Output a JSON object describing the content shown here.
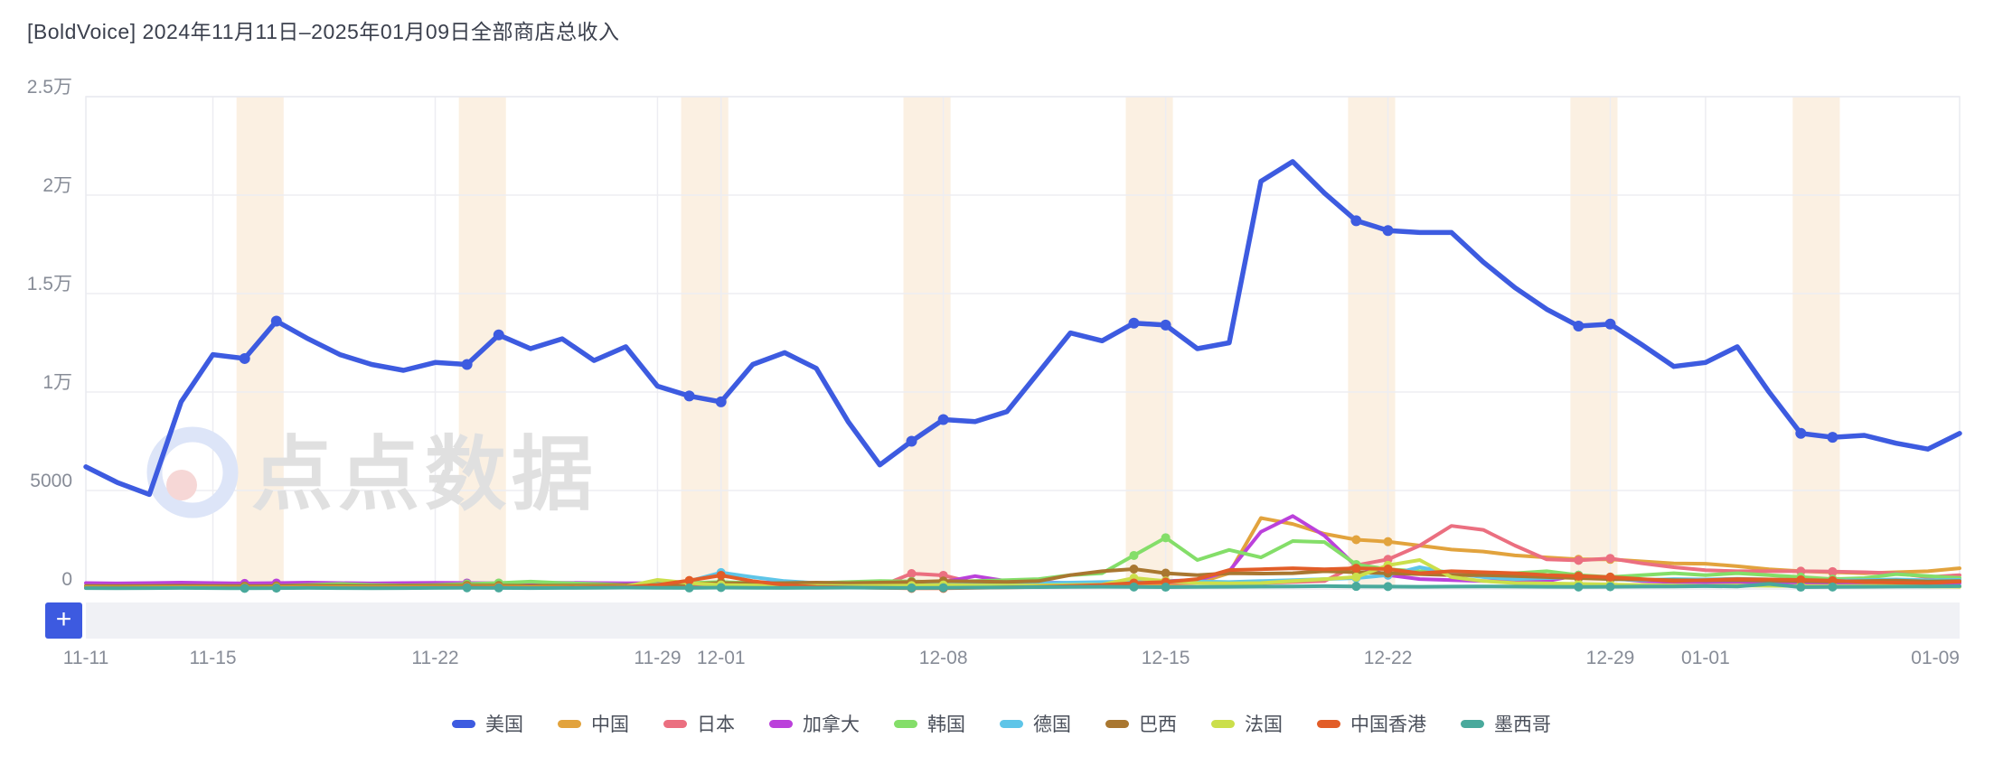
{
  "header": {
    "title": "[BoldVoice] 2024年11月11日–2025年01月09日全部商店总收入"
  },
  "watermark": {
    "text": "点点数据"
  },
  "controls": {
    "add_button_label": "+"
  },
  "colors": {
    "grid": "#ededf2",
    "plot_border": "#e9eaef",
    "weekend_band": "#fbf0e2",
    "axis_text": "#878c97",
    "brush_strip": "#f0f1f5",
    "add_button_bg": "#3d5ae0",
    "watermark_text": "#e0e0e0",
    "watermark_ring": "#dde5f8",
    "watermark_dot": "#f6d7d6"
  },
  "chart_data": {
    "type": "line",
    "title": "[BoldVoice] 2024年11月11日–2025年01月09日全部商店总收入",
    "xlabel": "",
    "ylabel": "",
    "ylim": [
      0,
      25000
    ],
    "grid": true,
    "legend_position": "bottom",
    "y_ticks": [
      {
        "label": "0",
        "value": 0
      },
      {
        "label": "5000",
        "value": 5000
      },
      {
        "label": "1万",
        "value": 10000
      },
      {
        "label": "1.5万",
        "value": 15000
      },
      {
        "label": "2万",
        "value": 20000
      },
      {
        "label": "2.5万",
        "value": 25000
      }
    ],
    "x": [
      "11-11",
      "11-12",
      "11-13",
      "11-14",
      "11-15",
      "11-16",
      "11-17",
      "11-18",
      "11-19",
      "11-20",
      "11-21",
      "11-22",
      "11-23",
      "11-24",
      "11-25",
      "11-26",
      "11-27",
      "11-28",
      "11-29",
      "11-30",
      "12-01",
      "12-02",
      "12-03",
      "12-04",
      "12-05",
      "12-06",
      "12-07",
      "12-08",
      "12-09",
      "12-10",
      "12-11",
      "12-12",
      "12-13",
      "12-14",
      "12-15",
      "12-16",
      "12-17",
      "12-18",
      "12-19",
      "12-20",
      "12-21",
      "12-22",
      "12-23",
      "12-24",
      "12-25",
      "12-26",
      "12-27",
      "12-28",
      "12-29",
      "12-30",
      "12-31",
      "01-01",
      "01-02",
      "01-03",
      "01-04",
      "01-05",
      "01-06",
      "01-07",
      "01-08",
      "01-09"
    ],
    "x_tick_labels": [
      {
        "label": "11-11",
        "index": 0
      },
      {
        "label": "11-15",
        "index": 4
      },
      {
        "label": "11-22",
        "index": 11
      },
      {
        "label": "11-29",
        "index": 18
      },
      {
        "label": "12-01",
        "index": 20
      },
      {
        "label": "12-08",
        "index": 27
      },
      {
        "label": "12-15",
        "index": 34
      },
      {
        "label": "12-22",
        "index": 41
      },
      {
        "label": "12-29",
        "index": 48
      },
      {
        "label": "01-01",
        "index": 51
      },
      {
        "label": "01-09",
        "index": 59
      }
    ],
    "weekend_band_start_indices": [
      5,
      12,
      19,
      26,
      33,
      40,
      47,
      54
    ],
    "series": [
      {
        "name": "美国",
        "slug": "us",
        "color": "#3d5be0",
        "values": [
          6200,
          5400,
          4800,
          9500,
          11900,
          11700,
          13600,
          12700,
          11900,
          11400,
          11100,
          11500,
          11400,
          12900,
          12200,
          12700,
          11600,
          12300,
          10300,
          9800,
          9500,
          11400,
          12000,
          11200,
          8500,
          6300,
          7500,
          8600,
          8500,
          9000,
          11000,
          13000,
          12600,
          13500,
          13400,
          12200,
          12500,
          20700,
          21700,
          20100,
          18700,
          18200,
          18100,
          18100,
          16600,
          15300,
          14200,
          13350,
          13450,
          12400,
          11300,
          11500,
          12300,
          10000,
          7900,
          7700,
          7800,
          7400,
          7100,
          7900
        ]
      },
      {
        "name": "中国",
        "slug": "china",
        "color": "#e2a33d",
        "values": [
          120,
          100,
          90,
          110,
          100,
          90,
          100,
          110,
          100,
          90,
          100,
          110,
          120,
          100,
          110,
          120,
          100,
          110,
          100,
          120,
          150,
          140,
          160,
          150,
          140,
          150,
          160,
          180,
          170,
          160,
          180,
          200,
          220,
          250,
          260,
          300,
          800,
          3600,
          3300,
          2800,
          2500,
          2400,
          2200,
          2000,
          1900,
          1700,
          1600,
          1500,
          1500,
          1400,
          1300,
          1280,
          1150,
          1000,
          900,
          850,
          800,
          850,
          900,
          1050
        ]
      },
      {
        "name": "日本",
        "slug": "japan",
        "color": "#eb6f80",
        "values": [
          80,
          70,
          60,
          80,
          70,
          60,
          70,
          80,
          70,
          60,
          70,
          80,
          90,
          80,
          70,
          80,
          90,
          80,
          90,
          100,
          120,
          110,
          100,
          110,
          120,
          130,
          780,
          690,
          300,
          200,
          180,
          200,
          250,
          300,
          350,
          300,
          280,
          300,
          350,
          400,
          1200,
          1500,
          2200,
          3200,
          3000,
          2200,
          1500,
          1450,
          1550,
          1300,
          1100,
          950,
          900,
          900,
          900,
          880,
          850,
          800,
          600,
          700
        ]
      },
      {
        "name": "加拿大",
        "slug": "canada",
        "color": "#bb41db",
        "values": [
          300,
          280,
          300,
          320,
          300,
          280,
          300,
          320,
          300,
          280,
          300,
          310,
          300,
          290,
          300,
          310,
          300,
          290,
          300,
          310,
          300,
          320,
          340,
          300,
          280,
          300,
          320,
          350,
          650,
          400,
          350,
          300,
          320,
          350,
          400,
          450,
          900,
          2900,
          3700,
          2700,
          1150,
          700,
          500,
          450,
          400,
          380,
          400,
          700,
          550,
          400,
          350,
          300,
          320,
          300,
          280,
          300,
          320,
          300,
          280,
          300
        ]
      },
      {
        "name": "韩国",
        "slug": "south-korea",
        "color": "#84de69",
        "values": [
          150,
          140,
          150,
          160,
          150,
          140,
          150,
          200,
          250,
          200,
          180,
          200,
          250,
          300,
          370,
          300,
          250,
          200,
          250,
          300,
          350,
          300,
          280,
          300,
          350,
          400,
          380,
          350,
          400,
          450,
          500,
          700,
          800,
          1700,
          2600,
          1470,
          1980,
          1600,
          2430,
          2380,
          1240,
          1000,
          900,
          800,
          700,
          800,
          900,
          700,
          600,
          700,
          800,
          700,
          800,
          700,
          600,
          500,
          550,
          750,
          650,
          560
        ]
      },
      {
        "name": "德国",
        "slug": "germany",
        "color": "#5ec5e8",
        "values": [
          100,
          90,
          100,
          110,
          100,
          90,
          100,
          120,
          110,
          100,
          110,
          120,
          130,
          120,
          110,
          120,
          130,
          140,
          200,
          400,
          830,
          600,
          400,
          300,
          280,
          300,
          320,
          350,
          300,
          280,
          300,
          320,
          350,
          380,
          400,
          380,
          350,
          400,
          450,
          500,
          550,
          700,
          1100,
          800,
          600,
          500,
          550,
          600,
          500,
          450,
          500,
          480,
          520,
          480,
          450,
          420,
          450,
          480,
          440,
          460
        ]
      },
      {
        "name": "巴西",
        "slug": "brazil",
        "color": "#a97730",
        "values": [
          150,
          140,
          150,
          160,
          150,
          140,
          150,
          170,
          160,
          150,
          160,
          170,
          180,
          170,
          160,
          170,
          180,
          190,
          200,
          250,
          300,
          280,
          300,
          320,
          300,
          320,
          350,
          400,
          380,
          360,
          400,
          700,
          900,
          1010,
          800,
          700,
          800,
          780,
          800,
          900,
          850,
          800,
          750,
          700,
          700,
          650,
          600,
          550,
          500,
          480,
          450,
          430,
          450,
          420,
          400,
          380,
          400,
          420,
          380,
          400
        ]
      },
      {
        "name": "法国",
        "slug": "france",
        "color": "#cbdf4b",
        "values": [
          80,
          70,
          80,
          90,
          80,
          70,
          80,
          100,
          90,
          80,
          90,
          100,
          110,
          100,
          90,
          100,
          110,
          120,
          460,
          300,
          200,
          180,
          150,
          160,
          150,
          160,
          170,
          200,
          180,
          170,
          180,
          200,
          220,
          550,
          400,
          300,
          280,
          300,
          400,
          500,
          600,
          1200,
          1470,
          600,
          400,
          300,
          280,
          250,
          220,
          200,
          180,
          160,
          180,
          160,
          150,
          140,
          150,
          160,
          130,
          110
        ]
      },
      {
        "name": "中国香港",
        "slug": "hong-kong",
        "color": "#e25d28",
        "values": [
          60,
          50,
          60,
          70,
          60,
          50,
          60,
          80,
          70,
          60,
          70,
          80,
          90,
          80,
          70,
          80,
          90,
          100,
          200,
          430,
          690,
          400,
          200,
          100,
          80,
          60,
          30,
          30,
          60,
          80,
          100,
          150,
          200,
          300,
          350,
          500,
          960,
          1000,
          1050,
          1000,
          1050,
          1010,
          800,
          900,
          850,
          800,
          700,
          650,
          600,
          500,
          400,
          450,
          500,
          480,
          460,
          420,
          350,
          320,
          300,
          370
        ]
      },
      {
        "name": "墨西哥",
        "slug": "mexico",
        "color": "#49a99c",
        "values": [
          40,
          30,
          40,
          50,
          40,
          30,
          40,
          50,
          40,
          30,
          40,
          50,
          60,
          50,
          40,
          50,
          60,
          70,
          60,
          50,
          70,
          60,
          50,
          60,
          70,
          60,
          50,
          60,
          70,
          80,
          90,
          100,
          110,
          100,
          90,
          100,
          110,
          120,
          130,
          140,
          130,
          120,
          110,
          120,
          130,
          120,
          110,
          100,
          110,
          120,
          130,
          140,
          130,
          250,
          90,
          100,
          110,
          120,
          130,
          140
        ]
      }
    ]
  }
}
